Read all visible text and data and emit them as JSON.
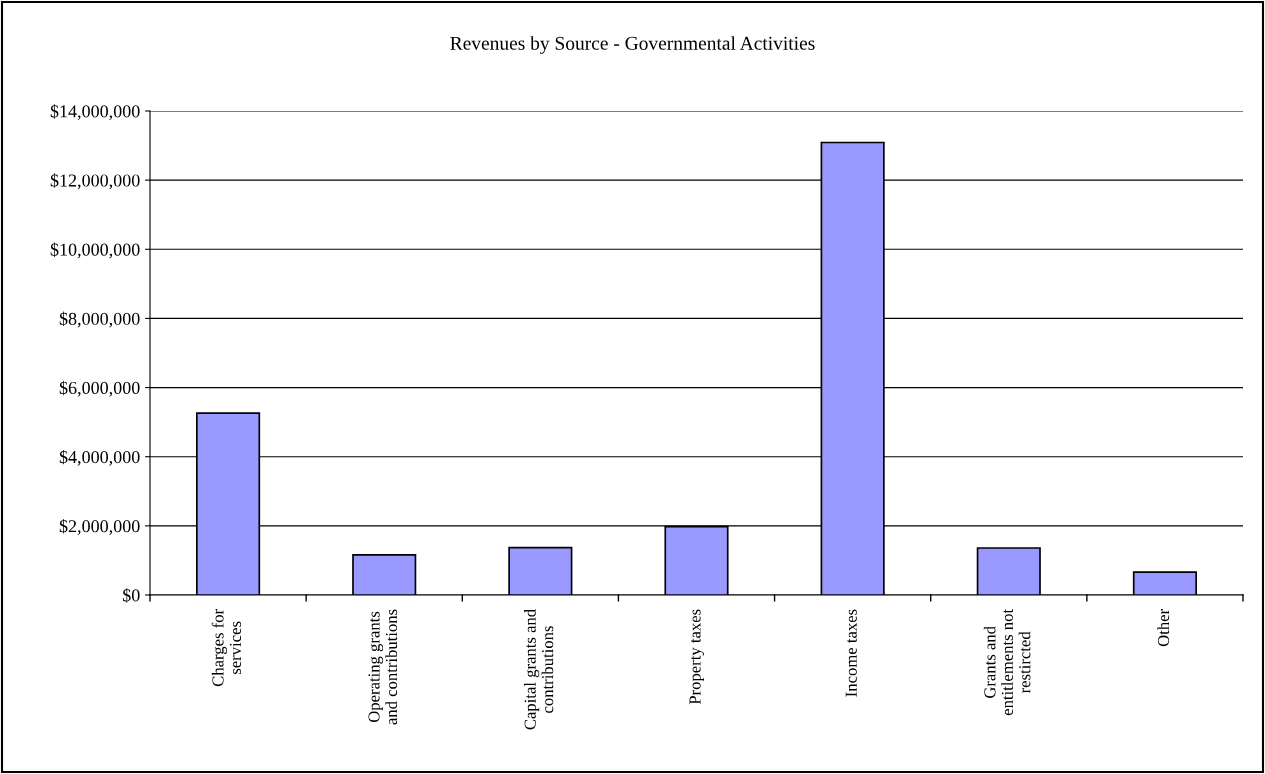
{
  "chart_data": {
    "type": "bar",
    "title": "Revenues by Source - Governmental Activities",
    "categories": [
      "Charges for\nservices",
      "Operating grants\nand contributions",
      "Capital grants and\ncontributions",
      "Property taxes",
      "Income taxes",
      "Grants and\nentitlements not\nrestircted",
      "Other"
    ],
    "values": [
      5260000,
      1160000,
      1370000,
      1980000,
      13090000,
      1360000,
      660000
    ],
    "color": "#9999ff",
    "ylim": [
      0,
      14000000
    ],
    "yticks": [
      {
        "value": 0,
        "label": "$0"
      },
      {
        "value": 2000000,
        "label": "$2,000,000"
      },
      {
        "value": 4000000,
        "label": "$4,000,000"
      },
      {
        "value": 6000000,
        "label": "$6,000,000"
      },
      {
        "value": 8000000,
        "label": "$8,000,000"
      },
      {
        "value": 10000000,
        "label": "$10,000,000"
      },
      {
        "value": 12000000,
        "label": "$12,000,000"
      },
      {
        "value": 14000000,
        "label": "$14,000,000"
      }
    ],
    "grid": "y",
    "legend": false
  }
}
